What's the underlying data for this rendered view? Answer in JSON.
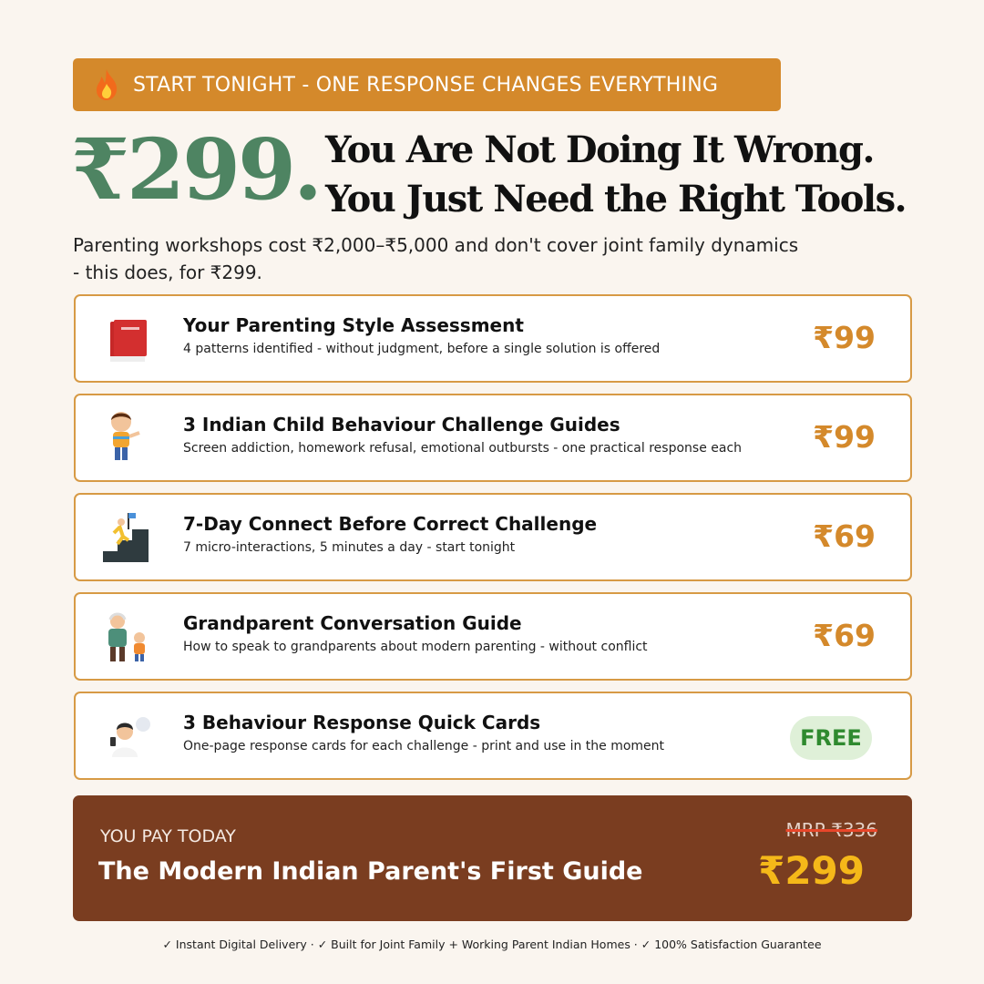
{
  "banner": {
    "icon": "fire-icon",
    "text": "START TONIGHT - ONE RESPONSE CHANGES EVERYTHING"
  },
  "hero": {
    "price": "₹299.",
    "headline_1": "You Are Not Doing It Wrong.",
    "headline_2": "You Just Need the Right Tools."
  },
  "subtext": "Parenting workshops cost ₹2,000–₹5,000 and don't cover joint family dynamics - this does, for ₹299.",
  "items": [
    {
      "icon": "book-icon",
      "title": "Your Parenting Style Assessment",
      "desc": "4 patterns identified - without judgment, before a single solution is offered",
      "price": "₹99"
    },
    {
      "icon": "angry-child-icon",
      "title": "3 Indian Child Behaviour Challenge Guides",
      "desc": "Screen addiction, homework refusal, emotional outbursts - one practical response each",
      "price": "₹99"
    },
    {
      "icon": "climbing-steps-flag-icon",
      "title": "7-Day Connect Before Correct Challenge",
      "desc": "7 micro-interactions, 5 minutes a day - start tonight",
      "price": "₹69"
    },
    {
      "icon": "grandparent-child-icon",
      "title": "Grandparent Conversation Guide",
      "desc": "How to speak to grandparents about modern parenting - without conflict",
      "price": "₹69"
    },
    {
      "icon": "parent-thinking-icon",
      "title": "3 Behaviour Response Quick Cards",
      "desc": "One-page response cards for each challenge - print and use in the moment",
      "price": "FREE"
    }
  ],
  "pay": {
    "label": "YOU PAY TODAY",
    "product": "The Modern Indian Parent's First Guide",
    "mrp": "MRP ₹336",
    "price": "₹299"
  },
  "footer": "✓ Instant Digital Delivery · ✓ Built for Joint Family + Working Parent Indian Homes · ✓ 100% Satisfaction Guarantee",
  "colors": {
    "accent": "#d4892b",
    "green": "#4e8462",
    "brown": "#7a3d20",
    "gold": "#f5b819",
    "background": "#faf5ef"
  }
}
